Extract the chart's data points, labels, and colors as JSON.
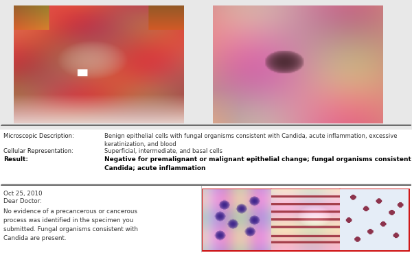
{
  "background_color": "#ffffff",
  "middle_section": {
    "label1": "Microscopic Description:",
    "text1": "Benign epithelial cells with fungal organisms consistent with Candida, acute inflammation, excessive\nkeratinization, and blood",
    "label2": "Cellular Representation:",
    "text2": "Superficial, intermediate, and basal cells",
    "label3": "Result:",
    "text3": "Negative for premalignant or malignant epithelial change; fungal organisms consistent with\nCandida; acute inflammation"
  },
  "bottom_section": {
    "date": "Oct 25, 2010",
    "salutation": "Dear Doctor:",
    "body": "No evidence of a precancerous or cancerous\nprocess was identified in the specimen you\nsubmitted. Fungal organisms consistent with\nCandida are present.",
    "micro_images_border": "#cc0000"
  },
  "divider_color": "#888888",
  "label_color": "#222222",
  "text_color": "#333333",
  "bold_color": "#000000",
  "photo_border_color": "#cccccc",
  "top_bg": "#e8e8e8"
}
